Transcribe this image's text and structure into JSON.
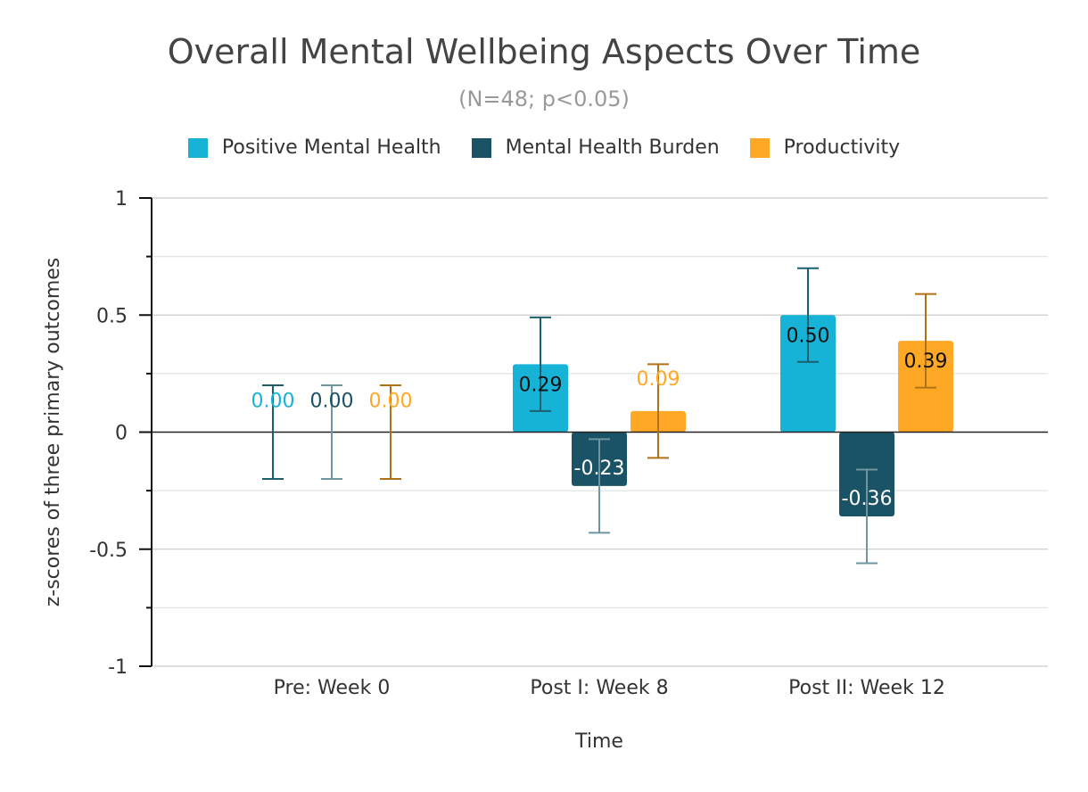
{
  "chart_data": {
    "type": "bar",
    "title": "Overall Mental Wellbeing Aspects Over Time",
    "subtitle": "(N=48; p<0.05)",
    "xlabel": "Time",
    "ylabel": "z-scores of three primary outcomes",
    "ylim": [
      -1,
      1
    ],
    "yticks": [
      "1",
      "0.5",
      "0",
      "-0.5",
      "-1"
    ],
    "grid": true,
    "legend_position": "top",
    "categories": [
      "Pre: Week 0",
      "Post I: Week 8",
      "Post II: Week 12"
    ],
    "series": [
      {
        "name": "Positive Mental Health",
        "color": "#17b3d6",
        "values": [
          0.0,
          0.29,
          0.5
        ],
        "error_low": [
          -0.2,
          0.09,
          0.3
        ],
        "error_high": [
          0.2,
          0.49,
          0.7
        ],
        "labels": [
          "0.00",
          "0.29",
          "0.50"
        ]
      },
      {
        "name": "Mental Health Burden",
        "color": "#1b5366",
        "values": [
          0.0,
          -0.23,
          -0.36
        ],
        "error_low": [
          -0.2,
          -0.43,
          -0.56
        ],
        "error_high": [
          0.2,
          -0.03,
          -0.16
        ],
        "labels": [
          "0.00",
          "-0.23",
          "-0.36"
        ]
      },
      {
        "name": "Productivity",
        "color": "#ffa825",
        "values": [
          0.0,
          0.09,
          0.39
        ],
        "error_low": [
          -0.2,
          -0.11,
          0.19
        ],
        "error_high": [
          0.2,
          0.29,
          0.59
        ],
        "labels": [
          "0.00",
          "0.09",
          "0.39"
        ]
      }
    ]
  }
}
